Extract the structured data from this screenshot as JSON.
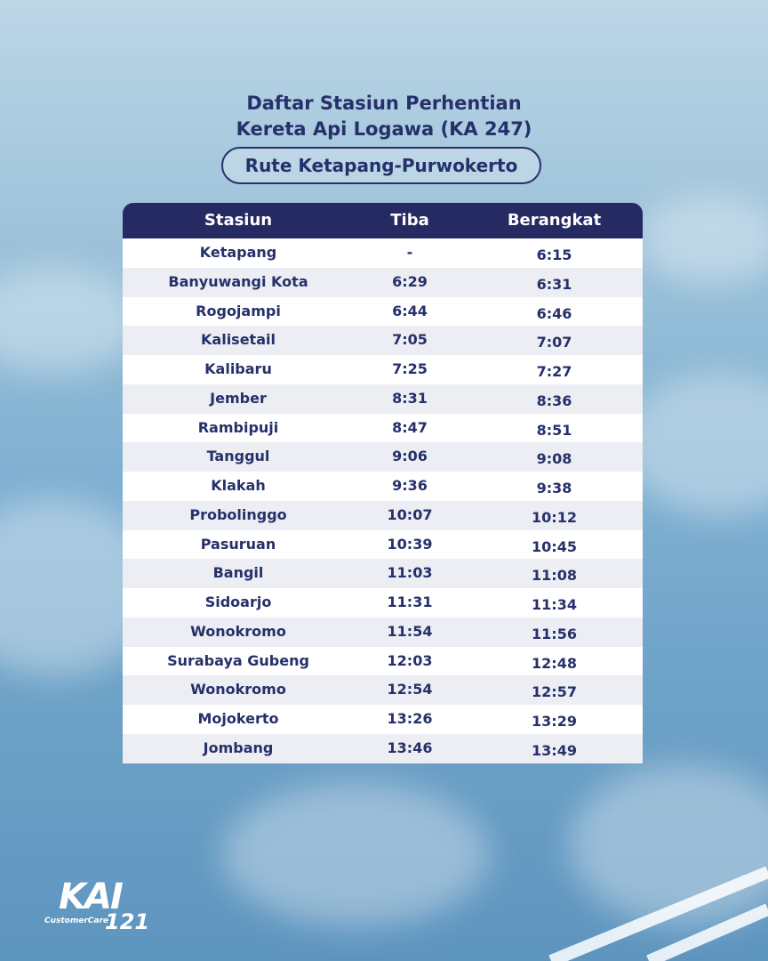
{
  "header": {
    "title_line1": "Daftar Stasiun Perhentian",
    "title_line2": "Kereta Api Logawa (KA 247)",
    "route": "Rute Ketapang-Purwokerto"
  },
  "table": {
    "columns": [
      "Stasiun",
      "Tiba",
      "Berangkat"
    ],
    "rows": [
      [
        "Ketapang",
        "-",
        "6:15"
      ],
      [
        "Banyuwangi Kota",
        "6:29",
        "6:31"
      ],
      [
        "Rogojampi",
        "6:44",
        "6:46"
      ],
      [
        "Kalisetail",
        "7:05",
        "7:07"
      ],
      [
        "Kalibaru",
        "7:25",
        "7:27"
      ],
      [
        "Jember",
        "8:31",
        "8:36"
      ],
      [
        "Rambipuji",
        "8:47",
        "8:51"
      ],
      [
        "Tanggul",
        "9:06",
        "9:08"
      ],
      [
        "Klakah",
        "9:36",
        "9:38"
      ],
      [
        "Probolinggo",
        "10:07",
        "10:12"
      ],
      [
        "Pasuruan",
        "10:39",
        "10:45"
      ],
      [
        "Bangil",
        "11:03",
        "11:08"
      ],
      [
        "Sidoarjo",
        "11:31",
        "11:34"
      ],
      [
        "Wonokromo",
        "11:54",
        "11:56"
      ],
      [
        "Surabaya Gubeng",
        "12:03",
        "12:48"
      ],
      [
        "Wonokromo",
        "12:54",
        "12:57"
      ],
      [
        "Mojokerto",
        "13:26",
        "13:29"
      ],
      [
        "Jombang",
        "13:46",
        "13:49"
      ]
    ]
  },
  "logo": {
    "brand": "KAI",
    "sub": "CustomerCare",
    "number": "121"
  },
  "colors": {
    "navy": "#26306a",
    "header_bg": "#262a63",
    "row_alt": "#eceef3"
  }
}
